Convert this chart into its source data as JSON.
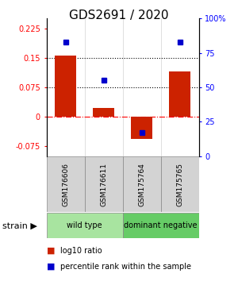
{
  "title": "GDS2691 / 2020",
  "samples": [
    "GSM176606",
    "GSM176611",
    "GSM175764",
    "GSM175765"
  ],
  "log10_ratio": [
    0.155,
    0.022,
    -0.055,
    0.115
  ],
  "percentile_rank": [
    0.83,
    0.55,
    0.17,
    0.83
  ],
  "ylim_left": [
    -0.1,
    0.25
  ],
  "ylim_right": [
    0.0,
    1.0
  ],
  "yticks_left": [
    -0.075,
    0.0,
    0.075,
    0.15,
    0.225
  ],
  "ytick_labels_left": [
    "-0.075",
    "0",
    "0.075",
    "0.15",
    "0.225"
  ],
  "yticks_right": [
    0.0,
    0.25,
    0.5,
    0.75,
    1.0
  ],
  "ytick_labels_right": [
    "0",
    "25",
    "50",
    "75",
    "100%"
  ],
  "hlines_dotted": [
    0.075,
    0.15
  ],
  "hline_dash": 0.0,
  "groups": [
    {
      "label": "wild type",
      "samples": [
        0,
        1
      ],
      "color": "#a8e4a0"
    },
    {
      "label": "dominant negative",
      "samples": [
        2,
        3
      ],
      "color": "#66CC66"
    }
  ],
  "bar_color": "#CC2200",
  "dot_color": "#0000CC",
  "bar_width": 0.55,
  "strain_label": "strain",
  "legend_ratio_label": "log10 ratio",
  "legend_pct_label": "percentile rank within the sample",
  "title_fontsize": 11,
  "tick_fontsize": 7,
  "sample_fontsize": 6.5,
  "group_fontsize": 7,
  "legend_fontsize": 7
}
